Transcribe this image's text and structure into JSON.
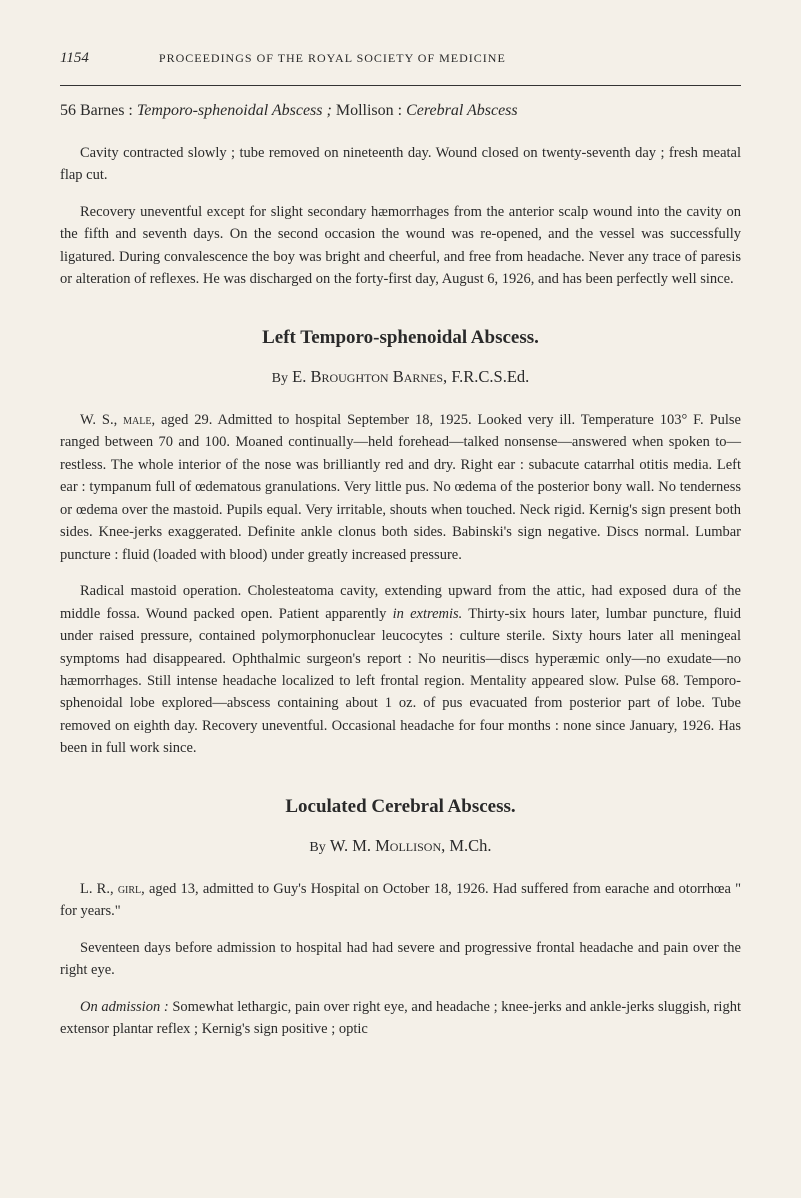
{
  "page_number": "1154",
  "running_header": "PROCEEDINGS OF THE ROYAL SOCIETY OF MEDICINE",
  "subject_line": {
    "number": "56",
    "text1": " Barnes : ",
    "italic1": "Temporo-sphenoidal Abscess ;",
    "text2": " Mollison : ",
    "italic2": "Cerebral Abscess"
  },
  "para1": "Cavity contracted slowly ; tube removed on nineteenth day. Wound closed on twenty-seventh day ; fresh meatal flap cut.",
  "para2": "Recovery uneventful except for slight secondary hæmorrhages from the anterior scalp wound into the cavity on the fifth and seventh days. On the second occasion the wound was re-opened, and the vessel was successfully ligatured. During convalescence the boy was bright and cheerful, and free from headache. Never any trace of paresis or alteration of reflexes. He was discharged on the forty-first day, August 6, 1926, and has been perfectly well since.",
  "section1": {
    "title": "Left Temporo-sphenoidal Abscess.",
    "by": "By",
    "author": "E. Broughton Barnes,",
    "credentials": " F.R.C.S.Ed."
  },
  "para3_prefix": "W. S., ",
  "para3_smallcaps": "male",
  "para3_rest": ", aged 29. Admitted to hospital September 18, 1925. Looked very ill. Temperature 103° F. Pulse ranged between 70 and 100. Moaned continually—held forehead—talked nonsense—answered when spoken to—restless. The whole interior of the nose was brilliantly red and dry. Right ear : subacute catarrhal otitis media. Left ear : tympanum full of œdematous granulations. Very little pus. No œdema of the posterior bony wall. No tenderness or œdema over the mastoid. Pupils equal. Very irritable, shouts when touched. Neck rigid. Kernig's sign present both sides. Knee-jerks exaggerated. Definite ankle clonus both sides. Babinski's sign negative. Discs normal. Lumbar puncture : fluid (loaded with blood) under greatly increased pressure.",
  "para4_pre": "Radical mastoid operation. Cholesteatoma cavity, extending upward from the attic, had exposed dura of the middle fossa. Wound packed open. Patient apparently ",
  "para4_italic": "in extremis.",
  "para4_post": " Thirty-six hours later, lumbar puncture, fluid under raised pressure, contained polymorphonuclear leucocytes : culture sterile. Sixty hours later all meningeal symptoms had disappeared. Ophthalmic surgeon's report : No neuritis—discs hyperæmic only—no exudate—no hæmorrhages. Still intense headache localized to left frontal region. Mentality appeared slow. Pulse 68. Temporo-sphenoidal lobe explored—abscess containing about 1 oz. of pus evacuated from posterior part of lobe. Tube removed on eighth day. Recovery uneventful. Occasional headache for four months : none since January, 1926. Has been in full work since.",
  "section2": {
    "title": "Loculated Cerebral Abscess.",
    "by": "By",
    "author": "W. M. Mollison,",
    "credentials": " M.Ch."
  },
  "para5_prefix": "L. R., ",
  "para5_smallcaps": "girl",
  "para5_rest": ", aged 13, admitted to Guy's Hospital on October 18, 1926. Had suffered from earache and otorrhœa \" for years.\"",
  "para6": "Seventeen days before admission to hospital had had severe and progressive frontal headache and pain over the right eye.",
  "para7_italic": "On admission :",
  "para7_rest": " Somewhat lethargic, pain over right eye, and headache ; knee-jerks and ankle-jerks sluggish, right extensor plantar reflex ; Kernig's sign positive ; optic"
}
